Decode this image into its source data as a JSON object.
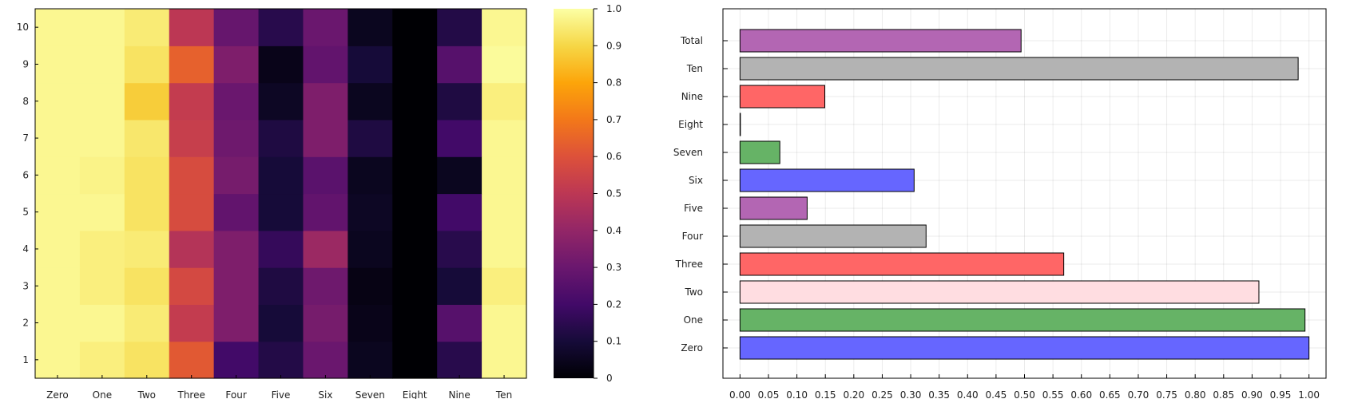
{
  "chart_data": [
    {
      "type": "heatmap",
      "x_categories": [
        "Zero",
        "One",
        "Two",
        "Three",
        "Four",
        "Five",
        "Six",
        "Seven",
        "Eight",
        "Nine",
        "Ten"
      ],
      "y_categories": [
        "1",
        "2",
        "3",
        "4",
        "5",
        "6",
        "7",
        "8",
        "9",
        "10"
      ],
      "values": [
        [
          0.98,
          0.96,
          0.93,
          0.62,
          0.2,
          0.13,
          0.3,
          0.05,
          0.0,
          0.14,
          0.98
        ],
        [
          0.98,
          0.98,
          0.95,
          0.52,
          0.35,
          0.1,
          0.33,
          0.04,
          0.0,
          0.25,
          0.98
        ],
        [
          0.98,
          0.96,
          0.93,
          0.57,
          0.35,
          0.12,
          0.31,
          0.03,
          0.0,
          0.1,
          0.96
        ],
        [
          0.98,
          0.96,
          0.95,
          0.48,
          0.35,
          0.17,
          0.42,
          0.05,
          0.0,
          0.14,
          0.98
        ],
        [
          0.98,
          0.98,
          0.93,
          0.58,
          0.28,
          0.1,
          0.28,
          0.06,
          0.0,
          0.2,
          0.98
        ],
        [
          0.98,
          0.97,
          0.93,
          0.58,
          0.33,
          0.1,
          0.26,
          0.05,
          0.0,
          0.05,
          0.98
        ],
        [
          0.98,
          0.98,
          0.94,
          0.53,
          0.31,
          0.12,
          0.35,
          0.12,
          0.0,
          0.2,
          0.98
        ],
        [
          0.98,
          0.98,
          0.88,
          0.52,
          0.3,
          0.06,
          0.35,
          0.05,
          0.0,
          0.12,
          0.96
        ],
        [
          0.98,
          0.98,
          0.93,
          0.64,
          0.35,
          0.04,
          0.28,
          0.1,
          0.0,
          0.25,
          0.99
        ],
        [
          0.98,
          0.98,
          0.95,
          0.5,
          0.29,
          0.14,
          0.3,
          0.05,
          0.0,
          0.13,
          0.98
        ]
      ],
      "colormap": "inferno",
      "clim": [
        0,
        1
      ],
      "colorbar_ticks": [
        "0",
        "0.1",
        "0.2",
        "0.3",
        "0.4",
        "0.5",
        "0.6",
        "0.7",
        "0.8",
        "0.9",
        "1.0"
      ],
      "grid": false
    },
    {
      "type": "bar",
      "orientation": "horizontal",
      "categories": [
        "Zero",
        "One",
        "Two",
        "Three",
        "Four",
        "Five",
        "Six",
        "Seven",
        "Eight",
        "Nine",
        "Ten",
        "Total"
      ],
      "values": [
        1.0,
        0.993,
        0.912,
        0.569,
        0.327,
        0.118,
        0.306,
        0.07,
        0.0,
        0.149,
        0.981,
        0.494
      ],
      "colors": [
        "#6666ff",
        "#66b366",
        "#ffdde1",
        "#ff6666",
        "#b3b3b3",
        "#b366b3",
        "#6666ff",
        "#66b366",
        "#b3b3b3",
        "#ff6666",
        "#b3b3b3",
        "#b366b3"
      ],
      "xlim": [
        -0.03,
        1.03
      ],
      "xticks": [
        "0.00",
        "0.05",
        "0.10",
        "0.15",
        "0.20",
        "0.25",
        "0.30",
        "0.35",
        "0.40",
        "0.45",
        "0.50",
        "0.55",
        "0.60",
        "0.65",
        "0.70",
        "0.75",
        "0.80",
        "0.85",
        "0.90",
        "0.95",
        "1.00"
      ],
      "grid": true
    }
  ]
}
